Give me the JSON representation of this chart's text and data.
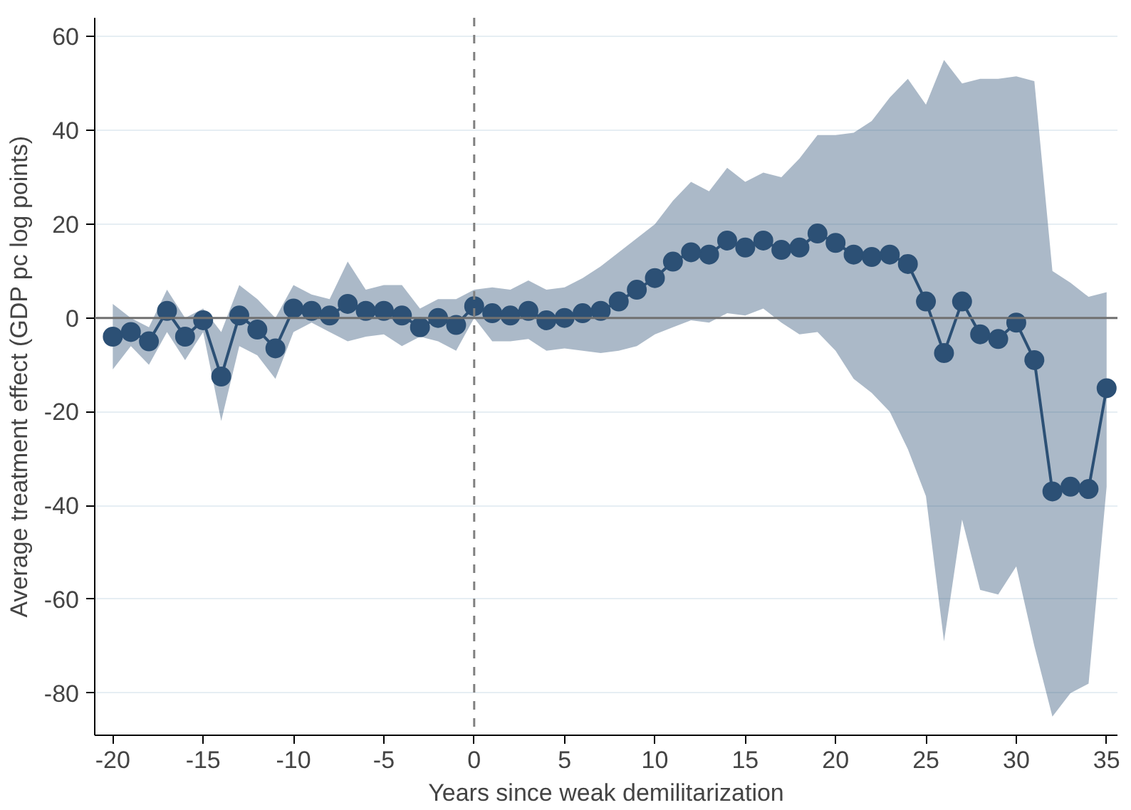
{
  "chart_data": {
    "type": "line",
    "xlabel": "Years since weak demilitarization",
    "ylabel": "Average treatment effect (GDP pc log points)",
    "x": [
      -20,
      -19,
      -18,
      -17,
      -16,
      -15,
      -14,
      -13,
      -12,
      -11,
      -10,
      -9,
      -8,
      -7,
      -6,
      -5,
      -4,
      -3,
      -2,
      -1,
      0,
      1,
      2,
      3,
      4,
      5,
      6,
      7,
      8,
      9,
      10,
      11,
      12,
      13,
      14,
      15,
      16,
      17,
      18,
      19,
      20,
      21,
      22,
      23,
      24,
      25,
      26,
      27,
      28,
      29,
      30,
      31,
      32,
      33,
      34,
      35
    ],
    "series": [
      {
        "color": "#2c5075",
        "values": [
          -4,
          -3,
          -5,
          1.5,
          -4,
          -0.5,
          -12.5,
          0.5,
          -2.5,
          -6.5,
          2,
          1.5,
          0.5,
          3,
          1.5,
          1.5,
          0.5,
          -2,
          0,
          -1.5,
          2.5,
          1,
          0.5,
          1.5,
          -0.5,
          0,
          1,
          1.5,
          3.5,
          6,
          8.5,
          12,
          14,
          13.5,
          16.5,
          15,
          16.5,
          14.5,
          15,
          18,
          16,
          13.5,
          13,
          13.5,
          11.5,
          3.5,
          -7.5,
          3.5,
          -3.5,
          -4.5,
          -1,
          -9,
          -37,
          -36,
          -36.5,
          -15
        ],
        "lower": [
          -11,
          -6,
          -10,
          -3,
          -9,
          -3,
          -22,
          -6,
          -8,
          -13,
          -3,
          -1,
          -3,
          -5,
          -4,
          -3.5,
          -6,
          -4,
          -5,
          -7,
          0,
          -5,
          -5,
          -4.5,
          -7,
          -6.5,
          -7,
          -7.5,
          -7,
          -6,
          -3.5,
          -2,
          -0.5,
          -1,
          1,
          0.5,
          2,
          -1,
          -3.5,
          -3,
          -7,
          -13,
          -16,
          -20,
          -28,
          -38,
          -69,
          -43,
          -58,
          -59,
          -53,
          -70,
          -85,
          -80,
          -78,
          -36
        ],
        "upper": [
          3,
          0,
          -2,
          6,
          0,
          2,
          -3,
          7,
          4,
          0,
          7,
          5,
          4,
          12,
          6,
          7,
          7,
          2,
          4,
          4,
          6,
          6.5,
          6,
          8,
          6,
          6.5,
          8.5,
          11,
          14,
          17,
          20,
          25,
          29,
          27,
          32,
          29,
          31,
          30,
          34,
          39,
          39,
          39.5,
          42,
          47,
          51,
          45.5,
          55,
          50,
          51,
          51,
          51.5,
          50.5,
          10,
          7.5,
          4.5,
          5.5
        ]
      }
    ],
    "xlim": [
      -21,
      35.6
    ],
    "ylim": [
      -89,
      64
    ],
    "xticks": [
      -20,
      -15,
      -10,
      -5,
      0,
      5,
      10,
      15,
      20,
      25,
      30,
      35
    ],
    "yticks": [
      -80,
      -60,
      -40,
      -20,
      0,
      20,
      40,
      60
    ],
    "grid": "y",
    "marker": "circle",
    "line_style": "solid",
    "ref_lines": [
      {
        "axis": "y",
        "value": 0,
        "color": "#707070",
        "line_style": "solid"
      },
      {
        "axis": "x",
        "value": 0,
        "color": "#808080",
        "line_style": "dashed"
      }
    ]
  }
}
